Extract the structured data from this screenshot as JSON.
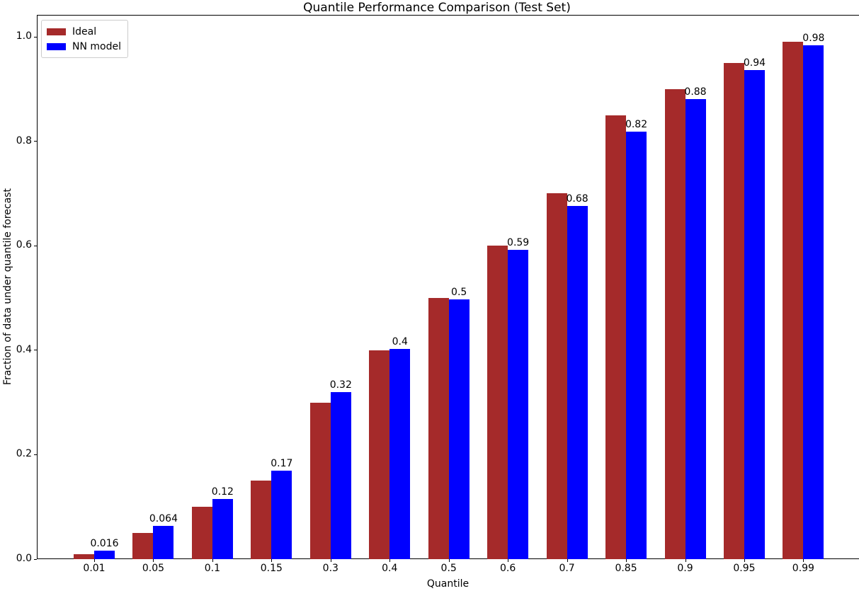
{
  "figure": {
    "title": "Quantile Performance Comparison (Test Set)",
    "xlabel": "Quantile",
    "ylabel": "Fraction of data under quantile forecast"
  },
  "legend": {
    "items": [
      {
        "label": "Ideal",
        "color": "#A52A2A"
      },
      {
        "label": "NN model",
        "color": "#0000FF"
      }
    ]
  },
  "chart_data": {
    "type": "bar",
    "title": "Quantile Performance Comparison (Test Set)",
    "xlabel": "Quantile",
    "ylabel": "Fraction of data under quantile forecast",
    "categories": [
      "0.01",
      "0.05",
      "0.1",
      "0.15",
      "0.3",
      "0.4",
      "0.5",
      "0.6",
      "0.7",
      "0.85",
      "0.9",
      "0.95",
      "0.99"
    ],
    "series": [
      {
        "name": "Ideal",
        "color": "#A52A2A",
        "values": [
          0.01,
          0.05,
          0.1,
          0.15,
          0.3,
          0.4,
          0.5,
          0.6,
          0.7,
          0.85,
          0.9,
          0.95,
          0.99
        ]
      },
      {
        "name": "NN model",
        "color": "#0000FF",
        "values": [
          0.016,
          0.064,
          0.115,
          0.169,
          0.32,
          0.402,
          0.497,
          0.592,
          0.676,
          0.818,
          0.881,
          0.936,
          0.984
        ],
        "bar_labels": [
          "0.016",
          "0.064",
          "0.12",
          "0.17",
          "0.32",
          "0.4",
          "0.5",
          "0.59",
          "0.68",
          "0.82",
          "0.88",
          "0.94",
          "0.98"
        ]
      }
    ],
    "yticks": [
      "0.0",
      "0.2",
      "0.4",
      "0.6",
      "0.8",
      "1.0"
    ],
    "ylim": [
      0,
      1.042
    ],
    "legend_position": "upper left",
    "grid": false
  }
}
